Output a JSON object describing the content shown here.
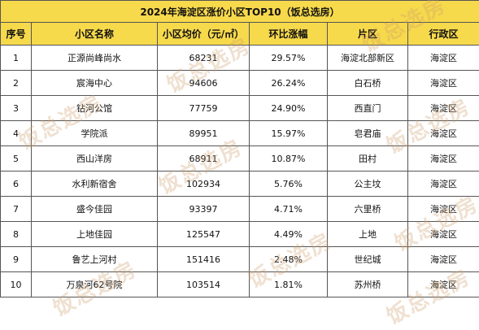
{
  "title": "2024年海淀区涨价小区TOP10（饭总选房）",
  "headers": [
    "序号",
    "小区名称",
    "小区均价（元/㎡）",
    "环比涨幅",
    "片区",
    "行政区"
  ],
  "rows": [
    {
      "rank": "1",
      "name": "正源尚峰尚水",
      "price": "68231",
      "change": "29.57%",
      "area": "海淀北部新区",
      "district": "海淀区"
    },
    {
      "rank": "2",
      "name": "宸海中心",
      "price": "94606",
      "change": "26.24%",
      "area": "白石桥",
      "district": "海淀区"
    },
    {
      "rank": "3",
      "name": "钻河公馆",
      "price": "77759",
      "change": "24.90%",
      "area": "西直门",
      "district": "海淀区"
    },
    {
      "rank": "4",
      "name": "学院派",
      "price": "89951",
      "change": "15.97%",
      "area": "皂君庙",
      "district": "海淀区"
    },
    {
      "rank": "5",
      "name": "西山洋房",
      "price": "68911",
      "change": "10.87%",
      "area": "田村",
      "district": "海淀区"
    },
    {
      "rank": "6",
      "name": "水利新宿舍",
      "price": "102934",
      "change": "5.76%",
      "area": "公主坟",
      "district": "海淀区"
    },
    {
      "rank": "7",
      "name": "盛今佳园",
      "price": "93397",
      "change": "4.71%",
      "area": "六里桥",
      "district": "海淀区"
    },
    {
      "rank": "8",
      "name": "上地佳园",
      "price": "125547",
      "change": "4.49%",
      "area": "上地",
      "district": "海淀区"
    },
    {
      "rank": "9",
      "name": "鲁艺上河村",
      "price": "151416",
      "change": "2.48%",
      "area": "世纪城",
      "district": "海淀区"
    },
    {
      "rank": "10",
      "name": "万泉河62号院",
      "price": "103514",
      "change": "1.81%",
      "area": "苏州桥",
      "district": "海淀区"
    }
  ],
  "watermark": "饭总选房"
}
